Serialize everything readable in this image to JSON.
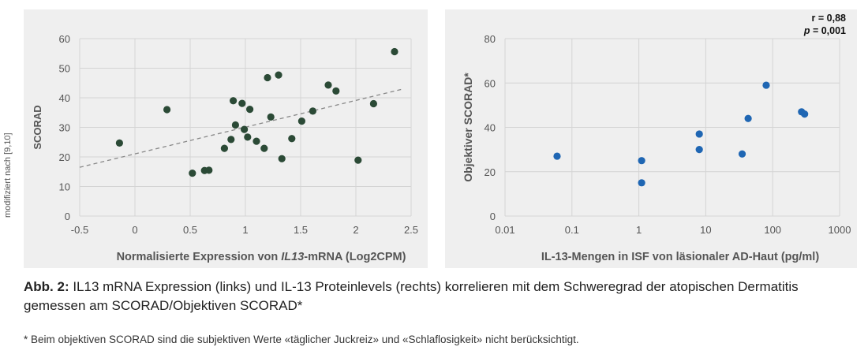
{
  "side_note": "modifiziert nach [9,10]",
  "caption": {
    "label": "Abb. 2:",
    "text": " IL13 mRNA Expression (links) und IL-13 Proteinlevels (rechts) korrelieren mit dem Schweregrad der atopischen Dermatitis gemessen am SCORAD/Objektiven SCORAD*"
  },
  "footnote": "* Beim objektiven SCORAD sind die subjektiven Werte «täglicher Juckreiz» und «Schlaflosigkeit» nicht berücksichtigt.",
  "colors": {
    "left_points": "#2b4a36",
    "right_points": "#1f66b3",
    "trend": "#888888",
    "grid": "#d4d4d4",
    "panel": "#efefef"
  },
  "chart_data": [
    {
      "type": "scatter",
      "xlabel_pre": "Normalisierte Expression von ",
      "xlabel_italic": "IL13",
      "xlabel_post": "-mRNA (Log2CPM)",
      "ylabel": "SCORAD",
      "xlim": [
        -0.5,
        2.5
      ],
      "ylim": [
        0,
        60
      ],
      "xticks": [
        "-0.5",
        "0",
        "0.5",
        "1",
        "1.5",
        "2",
        "2.5"
      ],
      "xtick_values": [
        -0.5,
        0,
        0.5,
        1,
        1.5,
        2,
        2.5
      ],
      "yticks": [
        "0",
        "10",
        "20",
        "30",
        "40",
        "50",
        "60"
      ],
      "ytick_values": [
        0,
        10,
        20,
        30,
        40,
        50,
        60
      ],
      "trendline": {
        "x": [
          -0.5,
          2.43
        ],
        "y": [
          16.5,
          43.0
        ]
      },
      "points": [
        {
          "x": -0.14,
          "y": 24.7
        },
        {
          "x": 0.29,
          "y": 36.0
        },
        {
          "x": 0.52,
          "y": 14.5
        },
        {
          "x": 0.63,
          "y": 15.4
        },
        {
          "x": 0.67,
          "y": 15.5
        },
        {
          "x": 0.81,
          "y": 22.9
        },
        {
          "x": 0.87,
          "y": 25.9
        },
        {
          "x": 0.89,
          "y": 39.0
        },
        {
          "x": 0.91,
          "y": 30.8
        },
        {
          "x": 0.97,
          "y": 38.1
        },
        {
          "x": 0.99,
          "y": 29.3
        },
        {
          "x": 1.02,
          "y": 26.7
        },
        {
          "x": 1.04,
          "y": 36.1
        },
        {
          "x": 1.1,
          "y": 25.3
        },
        {
          "x": 1.17,
          "y": 22.9
        },
        {
          "x": 1.2,
          "y": 46.8
        },
        {
          "x": 1.23,
          "y": 33.5
        },
        {
          "x": 1.3,
          "y": 47.7
        },
        {
          "x": 1.33,
          "y": 19.4
        },
        {
          "x": 1.42,
          "y": 26.2
        },
        {
          "x": 1.51,
          "y": 32.1
        },
        {
          "x": 1.61,
          "y": 35.5
        },
        {
          "x": 1.75,
          "y": 44.3
        },
        {
          "x": 1.82,
          "y": 42.3
        },
        {
          "x": 2.02,
          "y": 18.9
        },
        {
          "x": 2.16,
          "y": 38.0
        },
        {
          "x": 2.35,
          "y": 55.6
        }
      ]
    },
    {
      "type": "scatter",
      "xscale": "log",
      "xlabel": "IL-13-Mengen in ISF von läsionaler AD-Haut (pg/ml)",
      "ylabel": "Objektiver SCORAD*",
      "xlim": [
        0.01,
        1000
      ],
      "ylim": [
        0,
        80
      ],
      "xticks": [
        "0.01",
        "0.1",
        "1",
        "10",
        "100",
        "1000"
      ],
      "xtick_values": [
        0.01,
        0.1,
        1,
        10,
        100,
        1000
      ],
      "yticks": [
        "0",
        "20",
        "40",
        "60",
        "80"
      ],
      "ytick_values": [
        0,
        20,
        40,
        60,
        80
      ],
      "annotation_r": "r = 0,88",
      "annotation_p_label": "p",
      "annotation_p_value": " = 0,001",
      "points": [
        {
          "x": 0.06,
          "y": 27
        },
        {
          "x": 1.1,
          "y": 25
        },
        {
          "x": 1.1,
          "y": 15
        },
        {
          "x": 8,
          "y": 37
        },
        {
          "x": 8,
          "y": 30
        },
        {
          "x": 35,
          "y": 28
        },
        {
          "x": 43,
          "y": 44
        },
        {
          "x": 80,
          "y": 59
        },
        {
          "x": 270,
          "y": 47
        },
        {
          "x": 300,
          "y": 46
        }
      ]
    }
  ]
}
